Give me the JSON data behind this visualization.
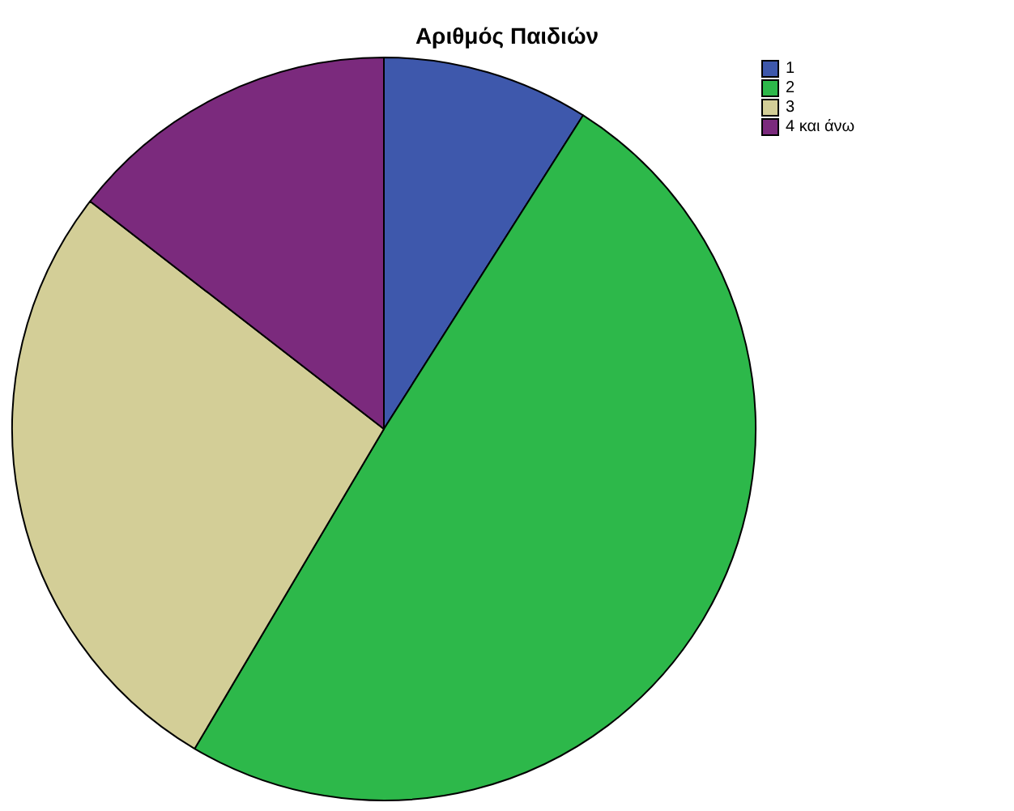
{
  "chart_data": {
    "type": "pie",
    "title": "Αριθμός Παιδιών",
    "categories": [
      "1",
      "2",
      "3",
      "4 και άνω"
    ],
    "values": [
      9,
      49.5,
      27,
      14.5
    ],
    "colors": [
      "#3e58ac",
      "#2db84a",
      "#d3ce97",
      "#7b2a7d"
    ],
    "legend": "top right"
  }
}
